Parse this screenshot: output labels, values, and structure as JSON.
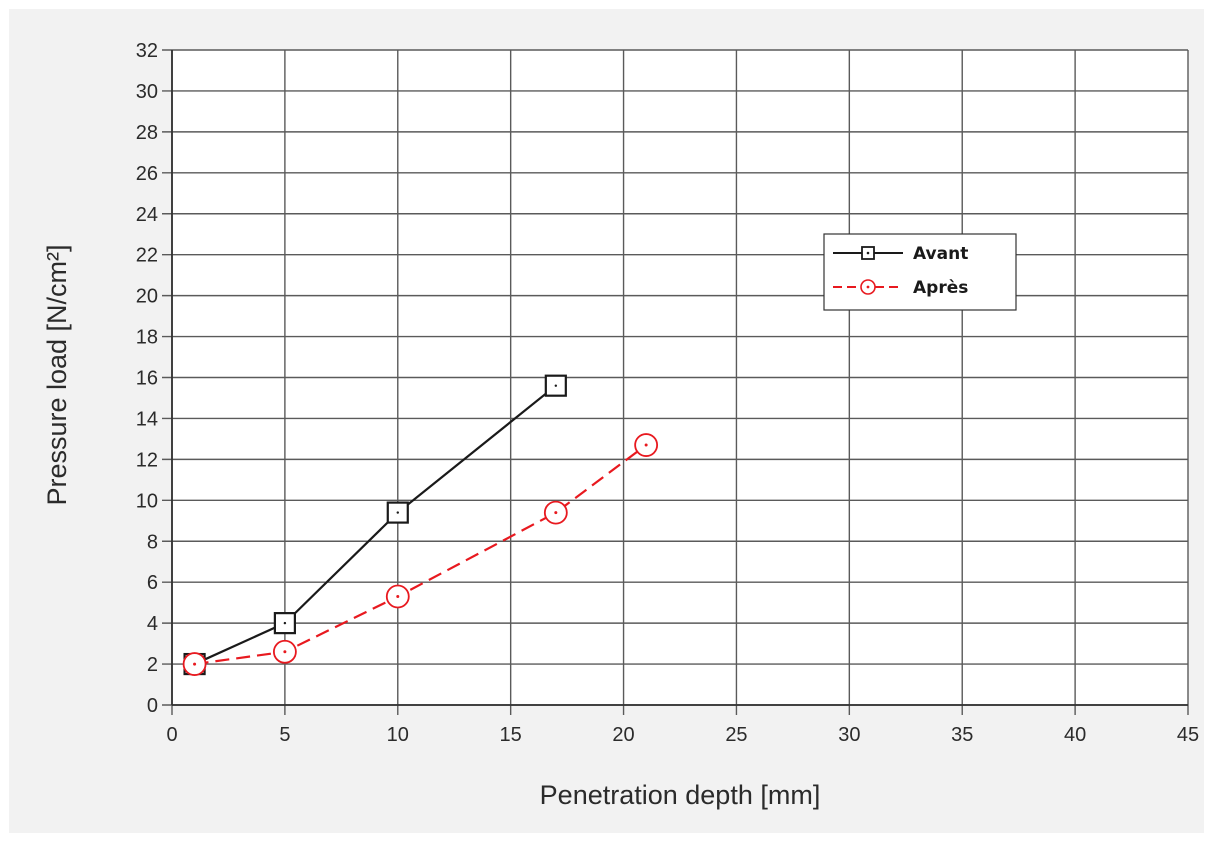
{
  "chart_data": {
    "type": "line",
    "xlabel": "Penetration depth [mm]",
    "ylabel": "Pressure load [N/cm²]",
    "xlim": [
      0,
      45
    ],
    "ylim": [
      0,
      32
    ],
    "xticks": [
      0,
      5,
      10,
      15,
      20,
      25,
      30,
      35,
      40,
      45
    ],
    "yticks": [
      0,
      2,
      4,
      6,
      8,
      10,
      12,
      14,
      16,
      18,
      20,
      22,
      24,
      26,
      28,
      30,
      32
    ],
    "grid": true,
    "legend_position": "top-right",
    "series": [
      {
        "name": "Avant",
        "color": "#1a1a1a",
        "marker": "square",
        "line_style": "solid",
        "x": [
          1,
          5,
          10,
          17
        ],
        "y": [
          2.0,
          4.0,
          9.4,
          15.6
        ]
      },
      {
        "name": "Après",
        "color": "#e8191f",
        "marker": "circle",
        "line_style": "dashed",
        "x": [
          1,
          5,
          10,
          17,
          21
        ],
        "y": [
          2.0,
          2.6,
          5.3,
          9.4,
          12.7
        ]
      }
    ]
  }
}
